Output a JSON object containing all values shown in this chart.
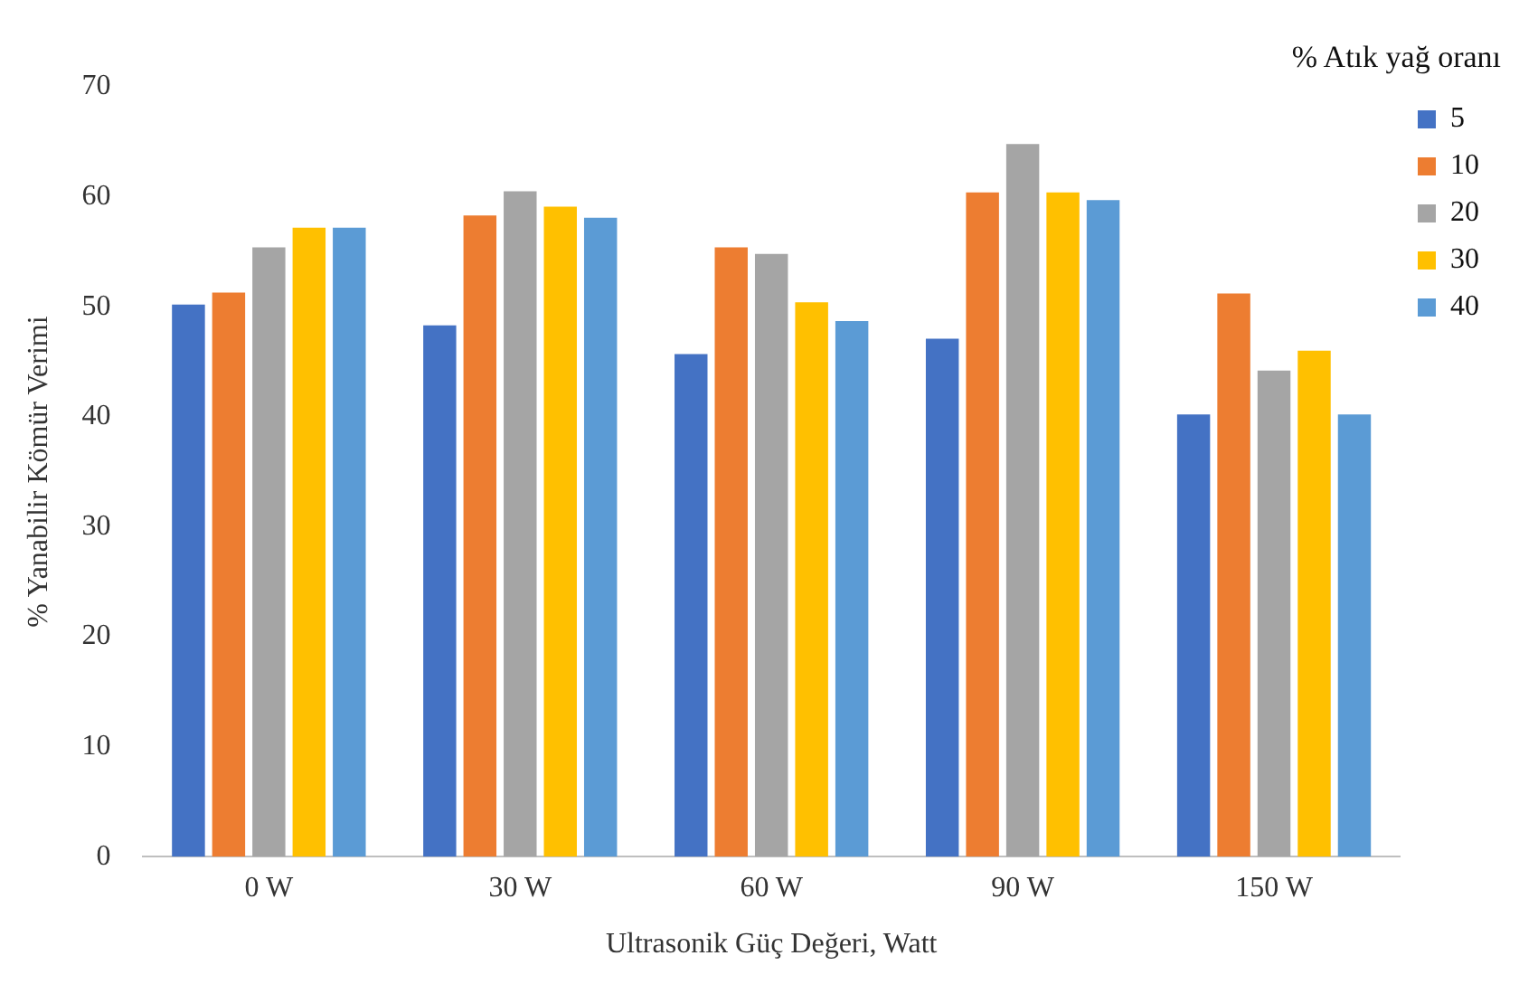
{
  "chart_data": {
    "type": "bar",
    "xlabel": "Ultrasonik Güç Değeri, Watt",
    "ylabel": "% Yanabilir Kömür Verimi",
    "legend_title": "% Atık yağ oranı",
    "categories": [
      "0 W",
      "30 W",
      "60 W",
      "90 W",
      "150 W"
    ],
    "series": [
      {
        "name": "5",
        "color": "#4472c4",
        "values": [
          50.2,
          48.3,
          45.7,
          47.1,
          40.2
        ]
      },
      {
        "name": "10",
        "color": "#ed7d31",
        "values": [
          51.3,
          58.3,
          55.4,
          60.4,
          51.2
        ]
      },
      {
        "name": "20",
        "color": "#a5a5a5",
        "values": [
          55.4,
          60.5,
          54.8,
          64.8,
          44.2
        ]
      },
      {
        "name": "30",
        "color": "#ffc000",
        "values": [
          57.2,
          59.1,
          50.4,
          60.4,
          46.0
        ]
      },
      {
        "name": "40",
        "color": "#5b9bd5",
        "values": [
          57.2,
          58.1,
          48.7,
          59.7,
          40.2
        ]
      }
    ],
    "ylim": [
      0,
      70
    ],
    "yticks": [
      0,
      10,
      20,
      30,
      40,
      50,
      60,
      70
    ],
    "grid": false,
    "legend": "top right"
  }
}
